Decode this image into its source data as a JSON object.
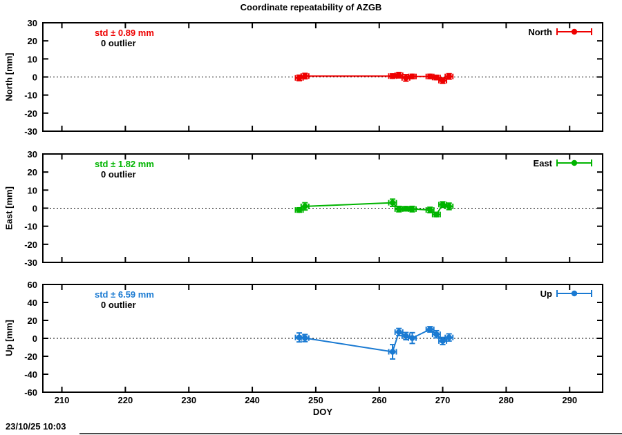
{
  "title": "Coordinate repeatability of AZGB",
  "timestamp": "23/10/25 10:03",
  "colors": {
    "north": "#ee0000",
    "east": "#00b400",
    "up": "#1a7ad2",
    "text": "#000000",
    "background": "#ffffff"
  },
  "x_axis": {
    "label": "DOY",
    "lim": [
      207,
      295.2
    ],
    "ticks": [
      210,
      220,
      230,
      240,
      250,
      260,
      270,
      280,
      290
    ]
  },
  "chart_data": [
    {
      "type": "scatter",
      "legend_label": "North",
      "ylabel": "North [mm]",
      "std_label": "std ± 0.89 mm",
      "outlier_label": "0 outlier",
      "color": "#ee0000",
      "legend_position": "top-right",
      "grid": "dotted-zero-line",
      "ylim": [
        -30,
        30
      ],
      "yticks": [
        30,
        20,
        10,
        0,
        -10,
        -20,
        -30
      ],
      "x": [
        247.4,
        248.3,
        262.1,
        263.1,
        264.2,
        265.2,
        268.0,
        269.0,
        270.0,
        271.0
      ],
      "y": [
        -0.5,
        0.5,
        0.5,
        1.0,
        -0.5,
        0.3,
        0.3,
        -0.3,
        -2.0,
        0.3
      ],
      "yerr": [
        1.5,
        1.5,
        1.2,
        1.5,
        1.8,
        1.2,
        1.2,
        1.2,
        1.5,
        1.5
      ],
      "xerr": 0.6
    },
    {
      "type": "scatter",
      "legend_label": "East",
      "ylabel": "East [mm]",
      "std_label": "std ± 1.82 mm",
      "outlier_label": "0 outlier",
      "color": "#00b400",
      "legend_position": "top-right",
      "grid": "dotted-zero-line",
      "ylim": [
        -30,
        30
      ],
      "yticks": [
        30,
        20,
        10,
        0,
        -10,
        -20,
        -30
      ],
      "x": [
        247.4,
        248.3,
        262.1,
        263.1,
        264.2,
        265.2,
        268.0,
        269.0,
        270.0,
        271.0
      ],
      "y": [
        -1.0,
        1.0,
        3.0,
        -0.5,
        -0.3,
        -0.5,
        -1.0,
        -3.5,
        2.0,
        1.0
      ],
      "yerr": [
        1.2,
        2.0,
        2.0,
        1.5,
        1.2,
        1.5,
        1.5,
        1.2,
        1.5,
        1.8
      ],
      "xerr": 0.6
    },
    {
      "type": "scatter",
      "legend_label": "Up",
      "ylabel": "Up [mm]",
      "std_label": "std ± 6.59 mm",
      "outlier_label": "0 outlier",
      "color": "#1a7ad2",
      "legend_position": "top-right",
      "grid": "dotted-zero-line",
      "ylim": [
        -60,
        60
      ],
      "yticks": [
        60,
        40,
        20,
        0,
        -20,
        -40,
        -60
      ],
      "x": [
        247.4,
        248.3,
        262.1,
        263.1,
        264.2,
        265.2,
        268.0,
        269.0,
        270.0,
        271.0
      ],
      "y": [
        1.0,
        0.3,
        -15.0,
        7.0,
        2.5,
        0.3,
        10.0,
        4.5,
        -3.0,
        1.0
      ],
      "yerr": [
        5.0,
        4.0,
        8.0,
        4.0,
        4.0,
        6.0,
        3.0,
        4.0,
        4.0,
        4.0
      ],
      "xerr": 0.6
    }
  ]
}
